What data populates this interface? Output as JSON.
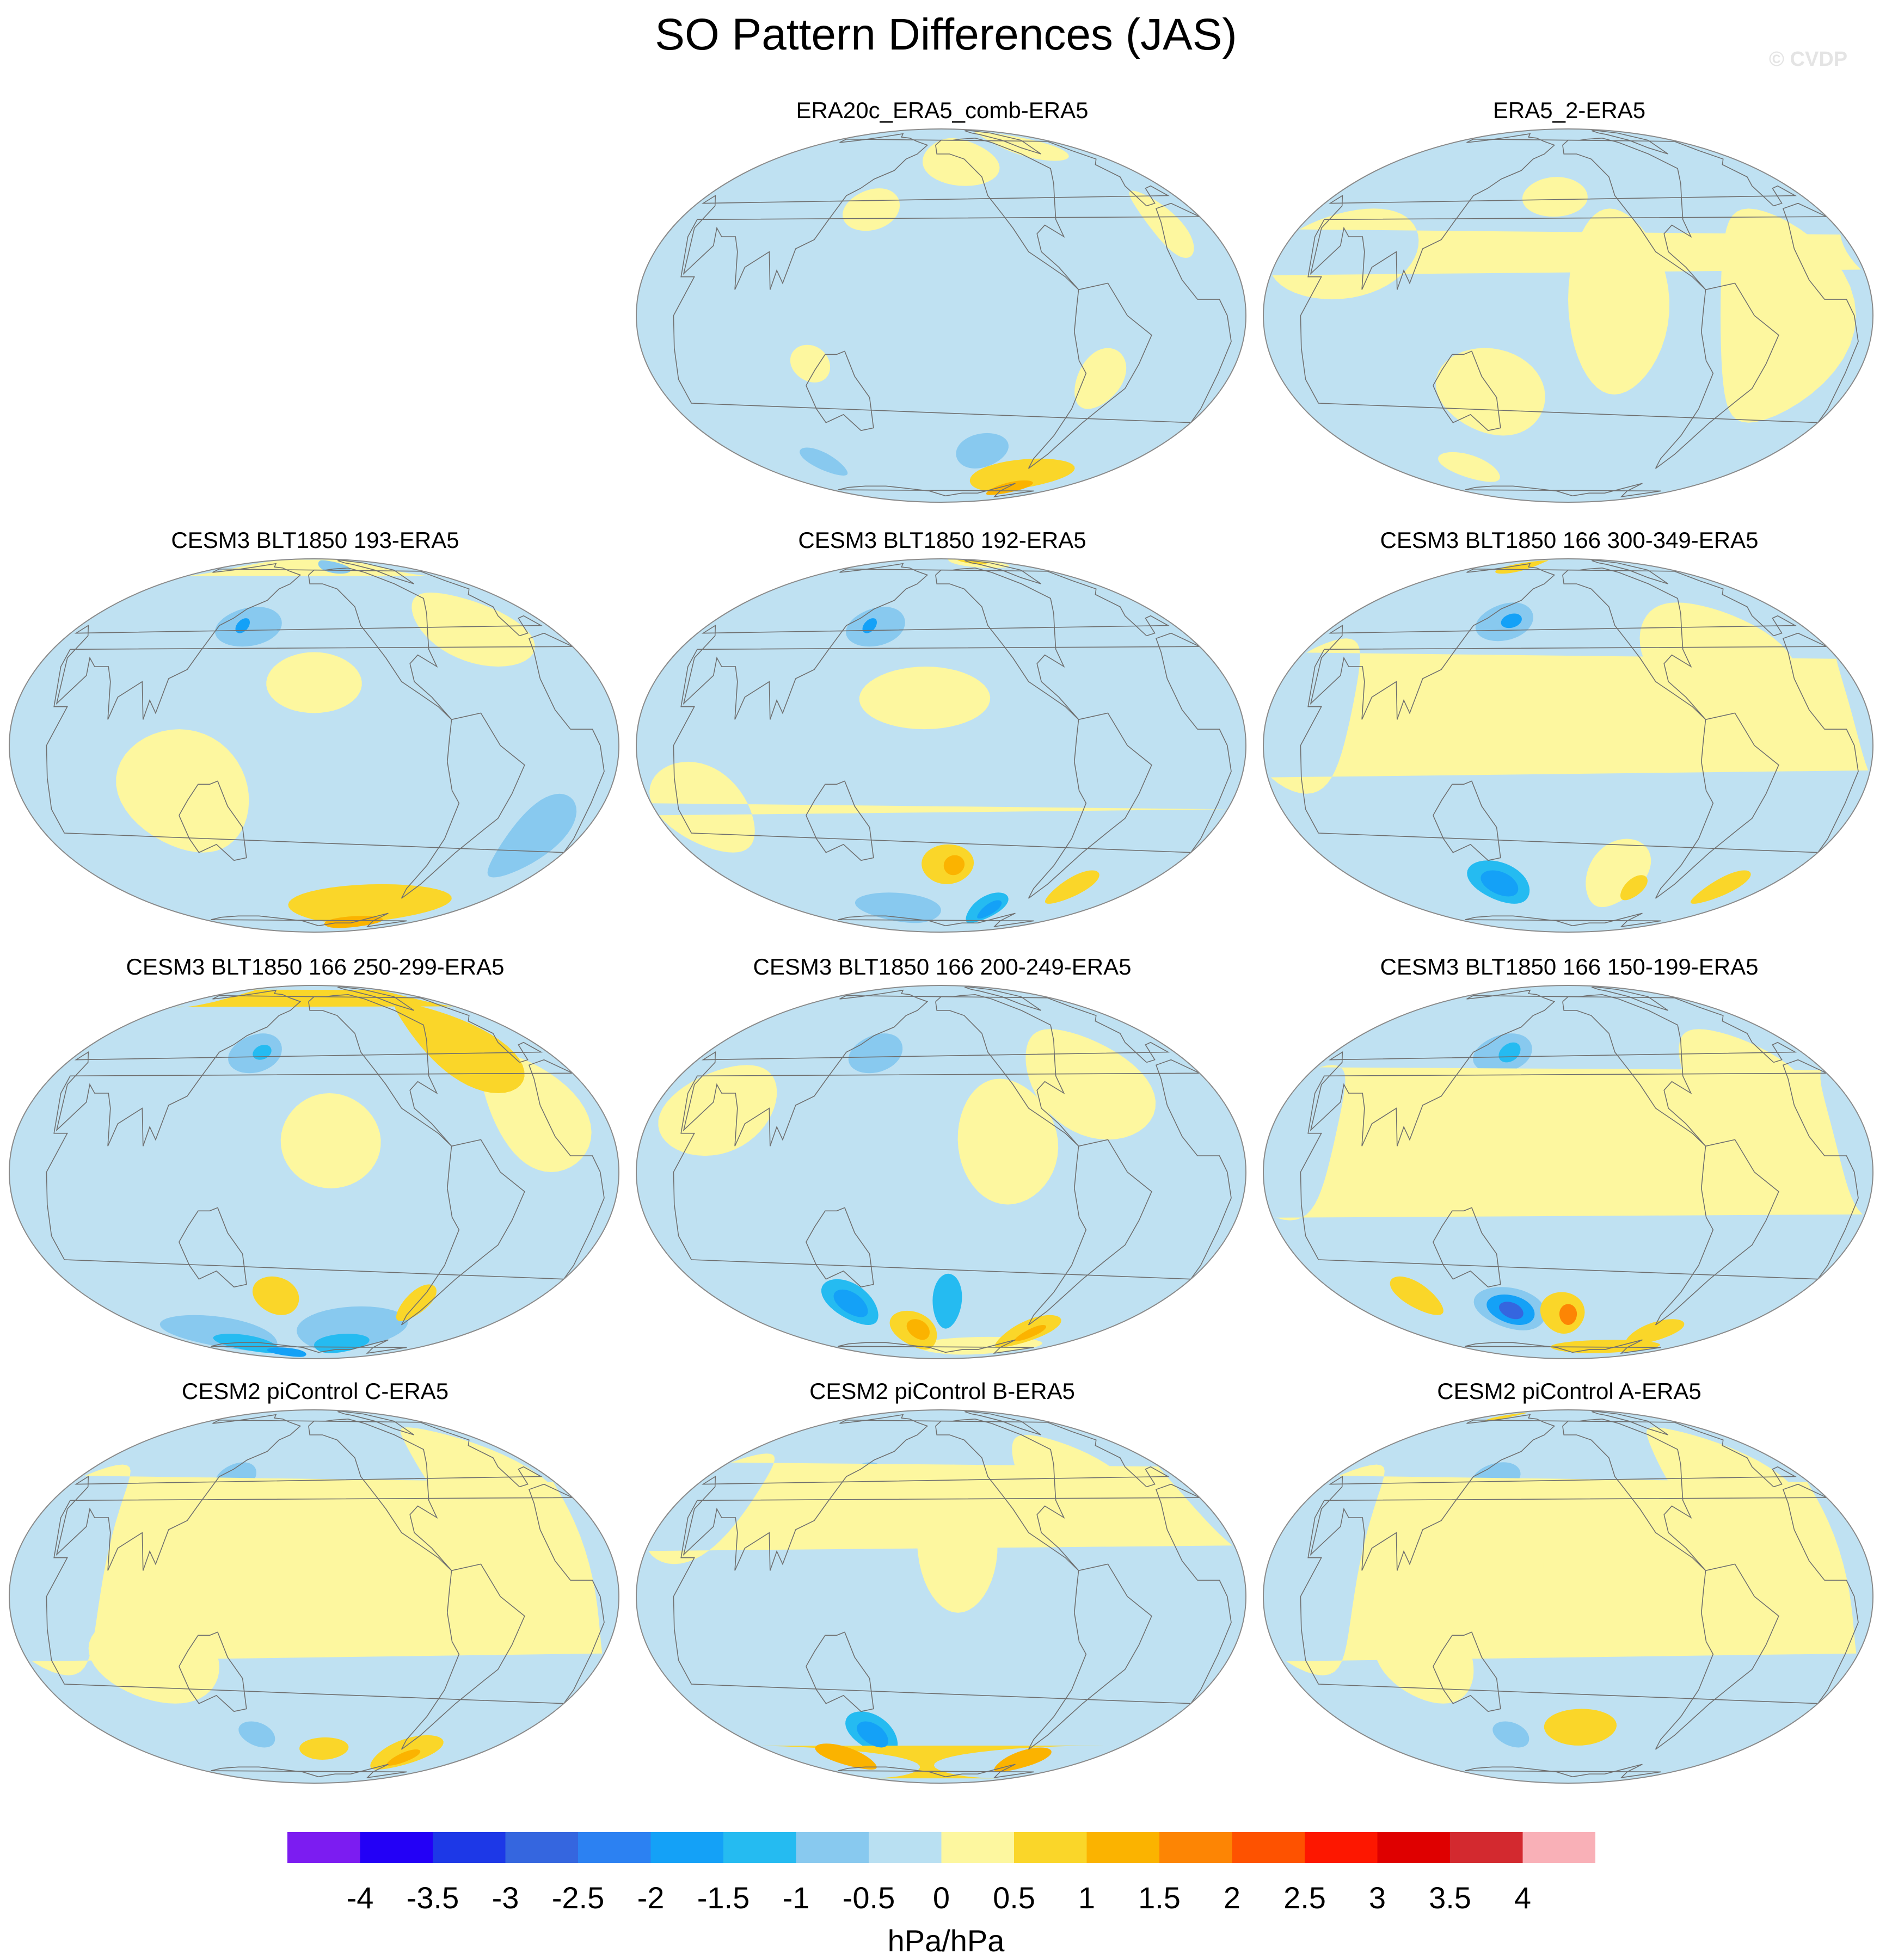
{
  "figure": {
    "title": "SO Pattern Differences (JAS)",
    "watermark": "© CVDP"
  },
  "colors": {
    "panel_background": "#bfe1f2",
    "coastline": "#6f6f6f",
    "outline": "#8a8a8a"
  },
  "panels": [
    {
      "title": "ERA20c_ERA5_comb-ERA5",
      "blobs": [
        {
          "lon": -140,
          "lat": 58,
          "rlon": 40,
          "rlat": 14,
          "level": 0.5
        },
        {
          "lon": -40,
          "lat": 68,
          "rlon": 40,
          "rlat": 12,
          "level": 0.5
        },
        {
          "lon": 150,
          "lat": 35,
          "rlon": 20,
          "rlat": 8,
          "level": 0.5
        },
        {
          "lon": -8,
          "lat": 30,
          "rlon": 12,
          "rlat": 12,
          "level": 0.5
        },
        {
          "lon": 120,
          "lat": -15,
          "rlon": 12,
          "rlat": 6,
          "level": 0.5
        },
        {
          "lon": -70,
          "lat": -60,
          "rlon": 55,
          "rlat": 10,
          "level": 1
        },
        {
          "lon": -55,
          "lat": -68,
          "rlon": 25,
          "rlat": 6,
          "level": 1.5
        },
        {
          "lon": -125,
          "lat": -47,
          "rlon": 22,
          "rlat": 8,
          "level": -0.5
        },
        {
          "lon": 88,
          "lat": -52,
          "rlon": 15,
          "rlat": 7,
          "level": -0.5
        },
        {
          "lon": -60,
          "lat": -20,
          "rlon": 15,
          "rlat": 10,
          "level": 0.5
        }
      ]
    },
    {
      "title": "ERA5_2-ERA5",
      "blobs": [
        {
          "lon": 60,
          "lat": 20,
          "rlon": 45,
          "rlat": 15,
          "level": 0.5
        },
        {
          "lon": 150,
          "lat": -25,
          "rlon": 35,
          "rlat": 15,
          "level": 0.5
        },
        {
          "lon": -130,
          "lat": 5,
          "rlon": 30,
          "rlat": 30,
          "level": 0.5
        },
        {
          "lon": -30,
          "lat": 0,
          "rlon": 40,
          "rlat": 35,
          "level": 0.5
        },
        {
          "lon": -170,
          "lat": 40,
          "rlon": 25,
          "rlat": 8,
          "level": 0.5
        },
        {
          "lon": 100,
          "lat": -55,
          "rlon": 25,
          "rlat": 8,
          "level": 0.5
        }
      ]
    },
    {
      "title": "CESM3 BLT1850 193-ERA5",
      "blobs": [
        {
          "lon": 150,
          "lat": 40,
          "rlon": 25,
          "rlat": 8,
          "level": -0.5
        },
        {
          "lon": 145,
          "lat": 40,
          "rlon": 5,
          "rlat": 3,
          "level": -1.5
        },
        {
          "lon": -10,
          "lat": -30,
          "rlon": 20,
          "rlat": 15,
          "level": -0.5
        },
        {
          "lon": -100,
          "lat": -60,
          "rlon": 90,
          "rlat": 12,
          "level": 1
        },
        {
          "lon": -90,
          "lat": -72,
          "rlon": 50,
          "rlat": 6,
          "level": 1.5
        },
        {
          "lon": 120,
          "lat": -15,
          "rlon": 40,
          "rlat": 20,
          "level": 0.5
        },
        {
          "lon": -160,
          "lat": 20,
          "rlon": 30,
          "rlat": 10,
          "level": 0.5
        },
        {
          "lon": -40,
          "lat": 40,
          "rlon": 40,
          "rlat": 15,
          "level": 0.5
        },
        {
          "lon": 10,
          "lat": 75,
          "rlon": 40,
          "rlat": 10,
          "level": 0.5
        },
        {
          "lon": -120,
          "lat": 75,
          "rlon": 30,
          "rlat": 8,
          "level": -0.5
        }
      ]
    },
    {
      "title": "CESM3 BLT1850 192-ERA5",
      "blobs": [
        {
          "lon": 150,
          "lat": 40,
          "rlon": 22,
          "rlat": 8,
          "level": -0.5
        },
        {
          "lon": 145,
          "lat": 40,
          "rlon": 5,
          "rlat": 3,
          "level": -1.5
        },
        {
          "lon": -155,
          "lat": -40,
          "rlon": 20,
          "rlat": 8,
          "level": 1
        },
        {
          "lon": -150,
          "lat": -40,
          "rlon": 8,
          "rlat": 4,
          "level": 1.5
        },
        {
          "lon": -105,
          "lat": -62,
          "rlon": 20,
          "rlat": 10,
          "level": -1
        },
        {
          "lon": -100,
          "lat": -62,
          "rlon": 10,
          "rlat": 6,
          "level": -1.5
        },
        {
          "lon": 150,
          "lat": -62,
          "rlon": 50,
          "rlat": 10,
          "level": -0.5
        },
        {
          "lon": -40,
          "lat": -50,
          "rlon": 15,
          "rlat": 8,
          "level": 1
        },
        {
          "lon": -170,
          "lat": 15,
          "rlon": 40,
          "rlat": 10,
          "level": 0.5
        },
        {
          "lon": -60,
          "lat": 80,
          "rlon": 70,
          "rlat": 8,
          "level": 0.5
        },
        {
          "lon": -60,
          "lat": 80,
          "rlon": 30,
          "rlat": 4,
          "level": 1
        },
        {
          "lon": 50,
          "lat": -20,
          "rlon": 30,
          "rlat": 15,
          "level": 0.5
        }
      ]
    },
    {
      "title": "CESM3 BLT1850 166 300-349-ERA5",
      "blobs": [
        {
          "lon": 150,
          "lat": 42,
          "rlon": 22,
          "rlat": 8,
          "level": -0.5
        },
        {
          "lon": 155,
          "lat": 42,
          "rlon": 8,
          "rlat": 3,
          "level": -1.5
        },
        {
          "lon": 140,
          "lat": -48,
          "rlon": 25,
          "rlat": 10,
          "level": -1
        },
        {
          "lon": 140,
          "lat": -48,
          "rlon": 15,
          "rlat": 6,
          "level": -1.5
        },
        {
          "lon": -120,
          "lat": -45,
          "rlon": 25,
          "rlat": 15,
          "level": 0.5
        },
        {
          "lon": -100,
          "lat": -50,
          "rlon": 10,
          "rlat": 6,
          "level": 1
        },
        {
          "lon": -20,
          "lat": -50,
          "rlon": 15,
          "rlat": 8,
          "level": 1
        },
        {
          "lon": -60,
          "lat": 30,
          "rlon": 50,
          "rlat": 20,
          "level": 0.5
        },
        {
          "lon": -170,
          "lat": 15,
          "rlon": 30,
          "rlat": 10,
          "level": 0.5
        },
        {
          "lon": 40,
          "lat": 10,
          "rlon": 30,
          "rlat": 25,
          "level": 0.5
        },
        {
          "lon": 100,
          "lat": 75,
          "rlon": 30,
          "rlat": 8,
          "level": 1
        }
      ]
    },
    {
      "title": "CESM3 BLT1850 166 250-299-ERA5",
      "blobs": [
        {
          "lon": 155,
          "lat": 40,
          "rlon": 20,
          "rlat": 8,
          "level": -0.5
        },
        {
          "lon": 160,
          "lat": 40,
          "rlon": 7,
          "rlat": 3,
          "level": -1
        },
        {
          "lon": 90,
          "lat": -62,
          "rlon": 60,
          "rlat": 12,
          "level": -0.5
        },
        {
          "lon": 100,
          "lat": -68,
          "rlon": 40,
          "rlat": 8,
          "level": -1
        },
        {
          "lon": -120,
          "lat": -68,
          "rlon": 40,
          "rlat": 8,
          "level": -1
        },
        {
          "lon": -120,
          "lat": -60,
          "rlon": 60,
          "rlat": 14,
          "level": -0.5
        },
        {
          "lon": 140,
          "lat": -76,
          "rlon": 40,
          "rlat": 6,
          "level": -1.5
        },
        {
          "lon": 170,
          "lat": -42,
          "rlon": 18,
          "rlat": 8,
          "level": 1
        },
        {
          "lon": -75,
          "lat": -45,
          "rlon": 12,
          "rlat": 8,
          "level": 1
        },
        {
          "lon": -40,
          "lat": 45,
          "rlon": 35,
          "rlat": 20,
          "level": 1
        },
        {
          "lon": -20,
          "lat": 20,
          "rlon": 30,
          "rlat": 20,
          "level": 0.5
        },
        {
          "lon": -150,
          "lat": 10,
          "rlon": 30,
          "rlat": 15,
          "level": 0.5
        },
        {
          "lon": 30,
          "lat": 70,
          "rlon": 30,
          "rlat": 8,
          "level": 1
        }
      ]
    },
    {
      "title": "CESM3 BLT1850 166 200-249-ERA5",
      "blobs": [
        {
          "lon": 150,
          "lat": 40,
          "rlon": 20,
          "rlat": 8,
          "level": -0.5
        },
        {
          "lon": 125,
          "lat": -45,
          "rlon": 20,
          "rlat": 10,
          "level": -1
        },
        {
          "lon": 125,
          "lat": -45,
          "rlon": 12,
          "rlat": 6,
          "level": -1.5
        },
        {
          "lon": -155,
          "lat": -45,
          "rlon": 12,
          "rlat": 12,
          "level": -1
        },
        {
          "lon": 170,
          "lat": -60,
          "rlon": 25,
          "rlat": 12,
          "level": 1
        },
        {
          "lon": 175,
          "lat": -58,
          "rlon": 12,
          "rlat": 6,
          "level": 1.5
        },
        {
          "lon": -60,
          "lat": -60,
          "rlon": 25,
          "rlat": 10,
          "level": 1
        },
        {
          "lon": -55,
          "lat": -60,
          "rlon": 10,
          "rlat": 5,
          "level": 1.5
        },
        {
          "lon": -100,
          "lat": -70,
          "rlon": 100,
          "rlat": 8,
          "level": 0.5
        },
        {
          "lon": -60,
          "lat": 30,
          "rlon": 40,
          "rlat": 20,
          "level": 0.5
        },
        {
          "lon": -120,
          "lat": 10,
          "rlon": 30,
          "rlat": 20,
          "level": 0.5
        },
        {
          "lon": 60,
          "lat": 20,
          "rlon": 35,
          "rlat": 15,
          "level": 0.5
        }
      ]
    },
    {
      "title": "CESM3 BLT1850 166 150-199-ERA5",
      "blobs": [
        {
          "lon": 150,
          "lat": 40,
          "rlon": 22,
          "rlat": 8,
          "level": -0.5
        },
        {
          "lon": 155,
          "lat": 40,
          "rlon": 8,
          "rlat": 4,
          "level": -1
        },
        {
          "lon": 150,
          "lat": -48,
          "rlon": 30,
          "rlat": 10,
          "level": -0.5
        },
        {
          "lon": 150,
          "lat": -48,
          "rlon": 20,
          "rlat": 7,
          "level": -1.5
        },
        {
          "lon": 150,
          "lat": -48,
          "rlon": 10,
          "rlat": 4,
          "level": -2.5
        },
        {
          "lon": -165,
          "lat": -50,
          "rlon": 20,
          "rlat": 10,
          "level": 1
        },
        {
          "lon": -160,
          "lat": -50,
          "rlon": 8,
          "rlat": 5,
          "level": 2
        },
        {
          "lon": -60,
          "lat": -60,
          "rlon": 25,
          "rlat": 8,
          "level": 1
        },
        {
          "lon": 80,
          "lat": -42,
          "rlon": 15,
          "rlat": 8,
          "level": 1
        },
        {
          "lon": -100,
          "lat": -70,
          "rlon": 90,
          "rlat": 6,
          "level": 1
        },
        {
          "lon": -40,
          "lat": 30,
          "rlon": 40,
          "rlat": 20,
          "level": 0.5
        },
        {
          "lon": -140,
          "lat": 10,
          "rlon": 30,
          "rlat": 15,
          "level": 0.5
        },
        {
          "lon": 30,
          "lat": 10,
          "rlon": 30,
          "rlat": 25,
          "level": 0.5
        }
      ]
    },
    {
      "title": "CESM2 piControl C-ERA5",
      "blobs": [
        {
          "lon": 140,
          "lat": 40,
          "rlon": 15,
          "rlat": 6,
          "level": -0.5
        },
        {
          "lon": 150,
          "lat": -48,
          "rlon": 15,
          "rlat": 6,
          "level": -0.5
        },
        {
          "lon": -60,
          "lat": -58,
          "rlon": 30,
          "rlat": 10,
          "level": 1
        },
        {
          "lon": -55,
          "lat": -60,
          "rlon": 12,
          "rlat": 5,
          "level": 1.5
        },
        {
          "lon": -150,
          "lat": -55,
          "rlon": 25,
          "rlat": 6,
          "level": 1
        },
        {
          "lon": -30,
          "lat": 40,
          "rlon": 45,
          "rlat": 25,
          "level": 0.5
        },
        {
          "lon": 40,
          "lat": 10,
          "rlon": 35,
          "rlat": 35,
          "level": 0.5
        },
        {
          "lon": -150,
          "lat": 15,
          "rlon": 30,
          "rlat": 15,
          "level": 0.5
        },
        {
          "lon": 100,
          "lat": -20,
          "rlon": 40,
          "rlat": 15,
          "level": 0.5
        }
      ]
    },
    {
      "title": "CESM2 piControl B-ERA5",
      "blobs": [
        {
          "lon": 140,
          "lat": 40,
          "rlon": 15,
          "rlat": 6,
          "level": -0.5
        },
        {
          "lon": 140,
          "lat": -48,
          "rlon": 20,
          "rlat": 10,
          "level": -1
        },
        {
          "lon": 140,
          "lat": -48,
          "rlon": 12,
          "rlat": 6,
          "level": -1.5
        },
        {
          "lon": 0,
          "lat": -65,
          "rlon": 170,
          "rlat": 12,
          "level": 1
        },
        {
          "lon": -60,
          "lat": -62,
          "rlon": 25,
          "rlat": 8,
          "level": 1.5
        },
        {
          "lon": 90,
          "lat": -60,
          "rlon": 25,
          "rlat": 8,
          "level": 1.5
        },
        {
          "lon": -150,
          "lat": 20,
          "rlon": 25,
          "rlat": 25,
          "level": 0.5
        },
        {
          "lon": -60,
          "lat": 40,
          "rlon": 40,
          "rlat": 20,
          "level": 0.5
        },
        {
          "lon": 40,
          "lat": 30,
          "rlon": 30,
          "rlat": 20,
          "level": 0.5
        }
      ]
    },
    {
      "title": "CESM2 piControl A-ERA5",
      "blobs": [
        {
          "lon": 145,
          "lat": 40,
          "rlon": 18,
          "rlat": 6,
          "level": -0.5
        },
        {
          "lon": 150,
          "lat": -48,
          "rlon": 15,
          "rlat": 6,
          "level": -0.5
        },
        {
          "lon": -150,
          "lat": -45,
          "rlon": 30,
          "rlat": 8,
          "level": 1
        },
        {
          "lon": -40,
          "lat": 40,
          "rlon": 45,
          "rlat": 25,
          "level": 0.5
        },
        {
          "lon": 40,
          "lat": 10,
          "rlon": 35,
          "rlat": 35,
          "level": 0.5
        },
        {
          "lon": -150,
          "lat": 10,
          "rlon": 25,
          "rlat": 20,
          "level": 0.5
        },
        {
          "lon": 110,
          "lat": -20,
          "rlon": 30,
          "rlat": 15,
          "level": 0.5
        },
        {
          "lon": 60,
          "lat": 75,
          "rlon": 15,
          "rlat": 5,
          "level": 1
        }
      ]
    }
  ],
  "colorbar": {
    "colors": [
      "#7c1cf1",
      "#2300f6",
      "#1d38e7",
      "#3566df",
      "#2c81f2",
      "#14a1f7",
      "#25bbf1",
      "#88c9ef",
      "#b9e0f2",
      "#fdf79f",
      "#fad629",
      "#fbb300",
      "#fd8504",
      "#fe5200",
      "#fd1700",
      "#df0000",
      "#d3292f",
      "#f9b0b7"
    ],
    "labels": [
      "-4",
      "-3.5",
      "-3",
      "-2.5",
      "-2",
      "-1.5",
      "-1",
      "-0.5",
      "0",
      "0.5",
      "1",
      "1.5",
      "2",
      "2.5",
      "3",
      "3.5",
      "4"
    ],
    "units": "hPa/hPa"
  }
}
